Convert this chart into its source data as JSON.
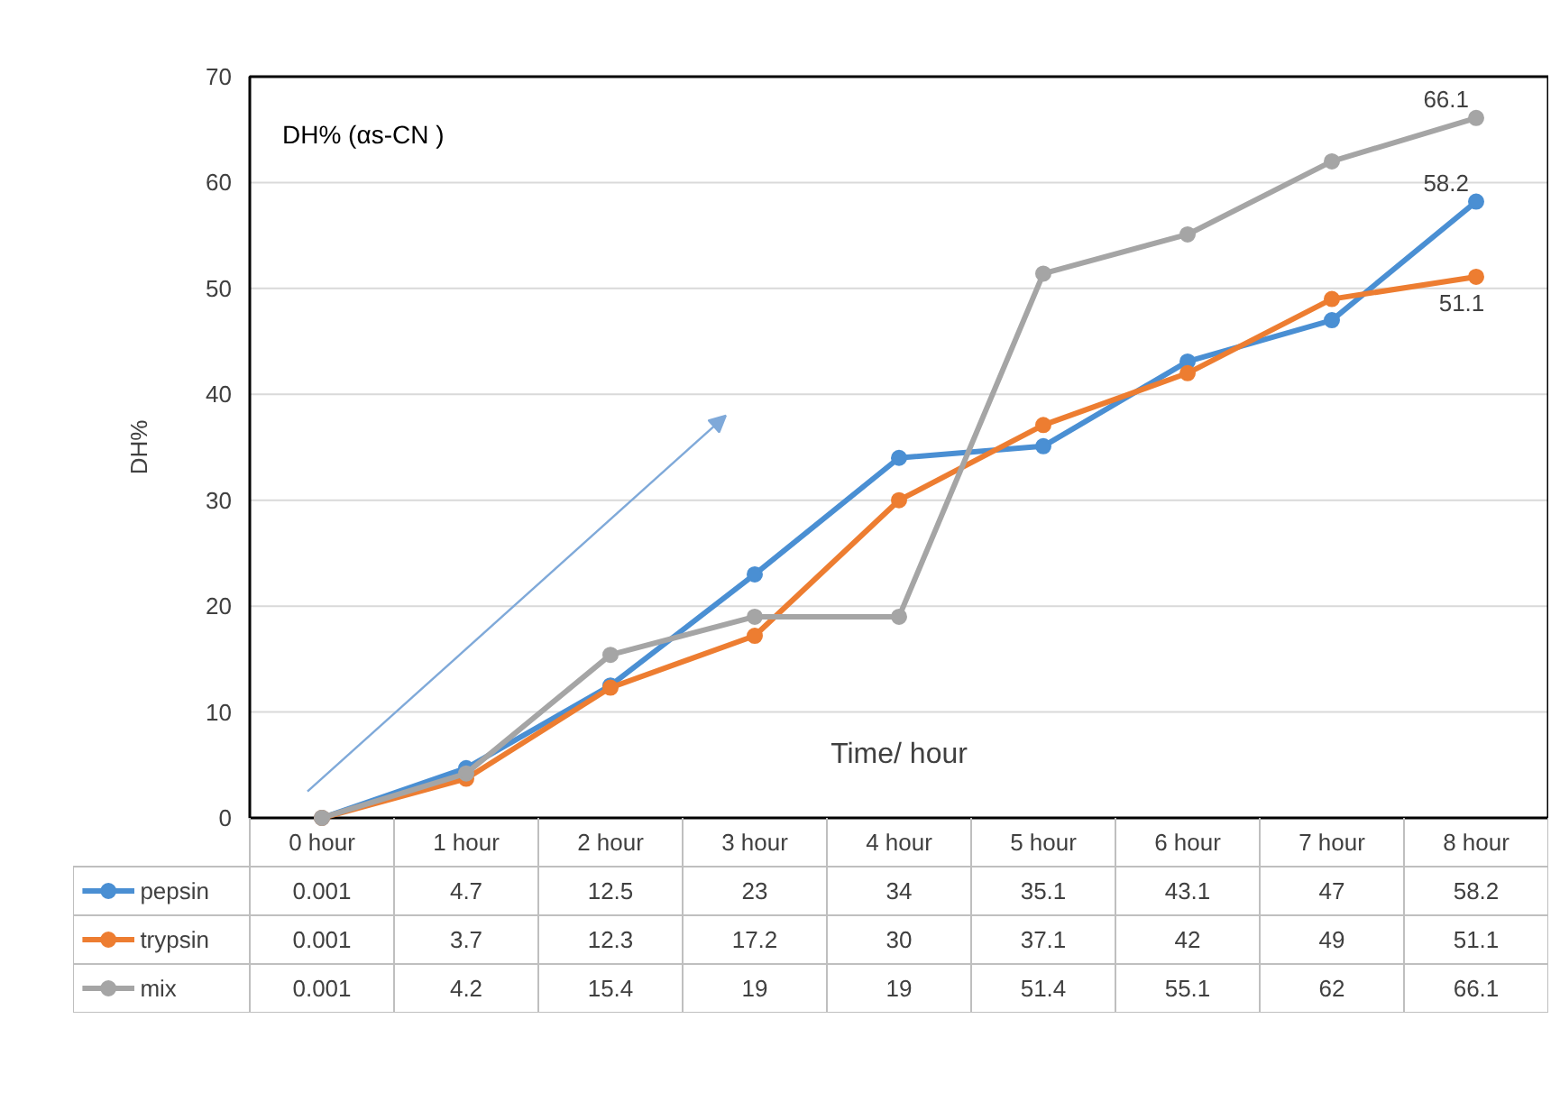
{
  "chart_data": {
    "type": "line",
    "title": "DH% (αs-CN )",
    "xlabel": "Time/ hour",
    "ylabel": "DH%",
    "categories": [
      "0 hour",
      "1 hour",
      "2 hour",
      "3 hour",
      "4 hour",
      "5 hour",
      "6 hour",
      "7 hour",
      "8 hour"
    ],
    "series": [
      {
        "name": "pepsin",
        "color": "#4a8fd3",
        "values": [
          0.001,
          4.7,
          12.5,
          23,
          34,
          35.1,
          43.1,
          47,
          58.2
        ],
        "value_labels": [
          "0.001",
          "4.7",
          "12.5",
          "23",
          "34",
          "35.1",
          "43.1",
          "47",
          "58.2"
        ]
      },
      {
        "name": "trypsin",
        "color": "#ed7d31",
        "values": [
          0.001,
          3.7,
          12.3,
          17.2,
          30,
          37.1,
          42,
          49,
          51.1
        ],
        "value_labels": [
          "0.001",
          "3.7",
          "12.3",
          "17.2",
          "30",
          "37.1",
          "42",
          "49",
          "51.1"
        ]
      },
      {
        "name": "mix",
        "color": "#a5a5a5",
        "values": [
          0.001,
          4.2,
          15.4,
          19,
          19,
          51.4,
          55.1,
          62,
          66.1
        ],
        "value_labels": [
          "0.001",
          "4.2",
          "15.4",
          "19",
          "19",
          "51.4",
          "55.1",
          "62",
          "66.1"
        ]
      }
    ],
    "annotations": [
      {
        "text": "66.1",
        "x": "8 hour",
        "y": 66.1
      },
      {
        "text": "58.2",
        "x": "8 hour",
        "y": 58.2
      },
      {
        "text": "51.1",
        "x": "8 hour",
        "y": 51.1
      }
    ],
    "ylim": [
      0,
      70
    ],
    "yticks": [
      0,
      10,
      20,
      30,
      40,
      50,
      60,
      70
    ],
    "grid": "y",
    "legend": "bottom",
    "marker": "circle",
    "line_style": "solid"
  }
}
